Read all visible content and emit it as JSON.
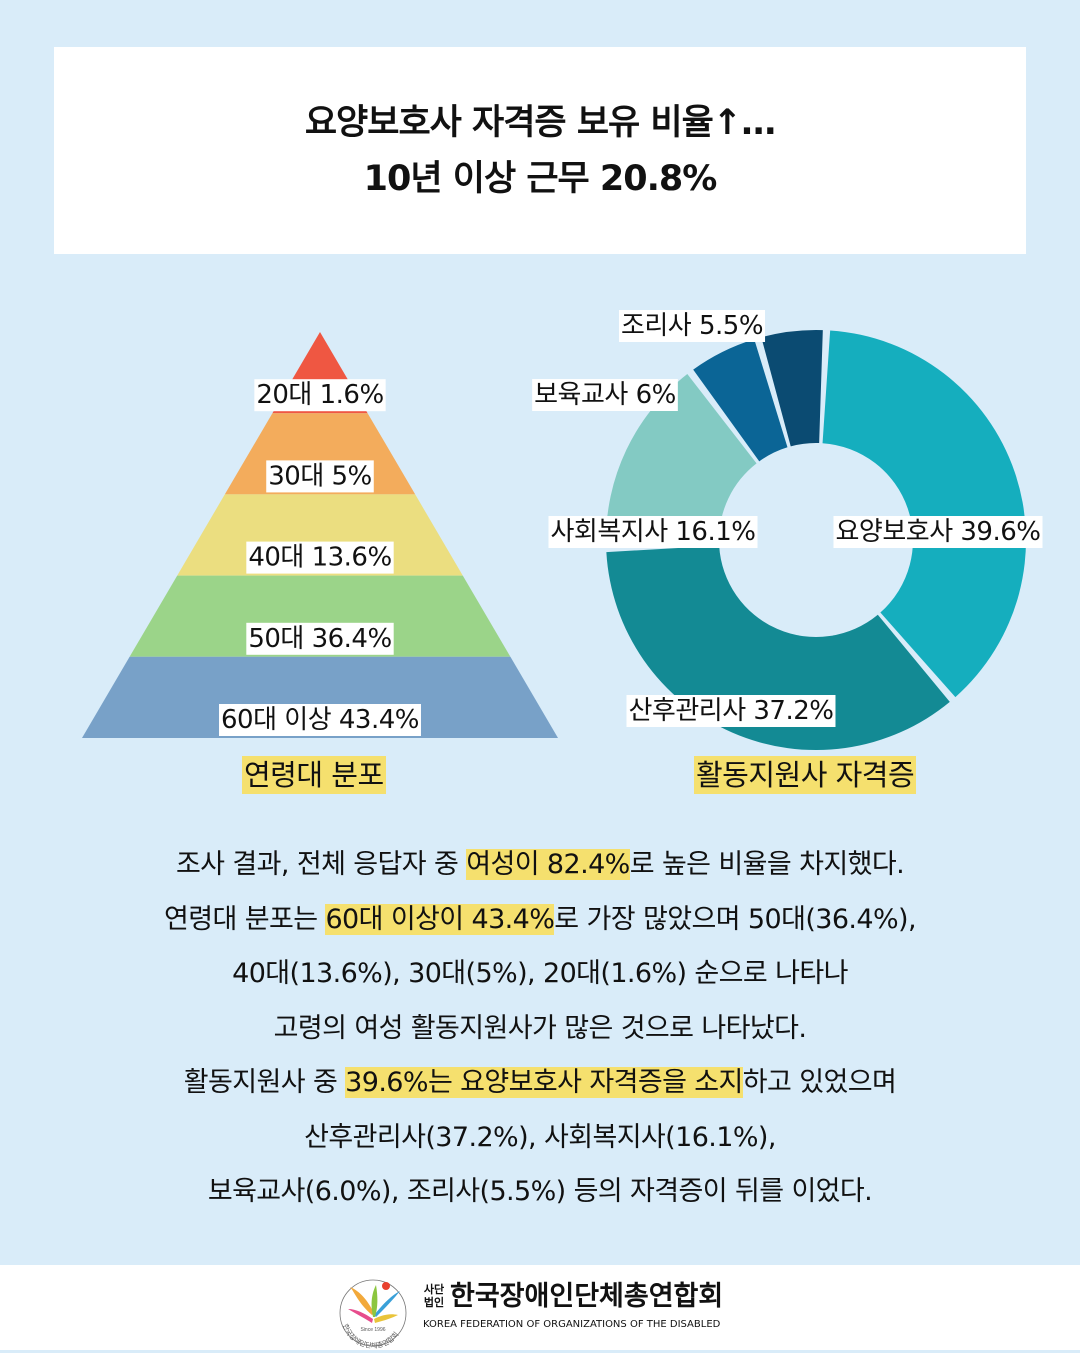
{
  "title": {
    "line1": "요양보호사 자격증 보유 비율↑…",
    "line2": "10년 이상 근무 20.8%"
  },
  "chart_data": [
    {
      "type": "pyramid",
      "title": "연령대 분포",
      "categories": [
        "20대",
        "30대",
        "40대",
        "50대",
        "60대 이상"
      ],
      "values": [
        1.6,
        5,
        13.6,
        36.4,
        43.4
      ],
      "labels": [
        "20대 1.6%",
        "30대 5%",
        "40대 13.6%",
        "50대 36.4%",
        "60대 이상 43.4%"
      ],
      "colors": [
        "#ef5742",
        "#f3ac5c",
        "#ebde80",
        "#9bd489",
        "#78a1c8"
      ]
    },
    {
      "type": "pie",
      "title": "활동지원사 자격증",
      "categories": [
        "요양보호사",
        "산후관리사",
        "사회복지사",
        "보육교사",
        "조리사"
      ],
      "values": [
        39.6,
        37.2,
        16.1,
        6,
        5.5
      ],
      "labels": [
        "요양보호사 39.6%",
        "산후관리사 37.2%",
        "사회복지사 16.1%",
        "보육교사 6%",
        "조리사 5.5%"
      ],
      "colors": [
        "#15aebe",
        "#138a94",
        "#83cac3",
        "#0b6596",
        "#0b4b72"
      ]
    }
  ],
  "body": {
    "p1": {
      "a": "조사 결과, 전체 응답자 중 ",
      "hl": "여성이 82.4%",
      "b": "로 높은 비율을 차지했다."
    },
    "p2": {
      "a": "연령대 분포는 ",
      "hl": "60대 이상이 43.4%",
      "b": "로 가장 많았으며 50대(36.4%),"
    },
    "p3": "40대(13.6%), 30대(5%), 20대(1.6%) 순으로 나타나",
    "p4": "고령의 여성 활동지원사가 많은 것으로 나타났다.",
    "p5": {
      "a": "활동지원사 중 ",
      "hl": "39.6%는 요양보호사 자격증을 소지",
      "b": "하고 있었으며"
    },
    "p6": "산후관리사(37.2%), 사회복지사(16.1%),",
    "p7": "보육교사(6.0%), 조리사(5.5%) 등의 자격증이 뒤를 이었다."
  },
  "footer": {
    "org_prefix": "사단법인",
    "org_name": "한국장애인단체총연합회",
    "org_english": "KOREA FEDERATION OF ORGANIZATIONS OF THE DISABLED",
    "logo_since": "Since 1996",
    "logo_ring": "한국장애인단체총연합회"
  }
}
